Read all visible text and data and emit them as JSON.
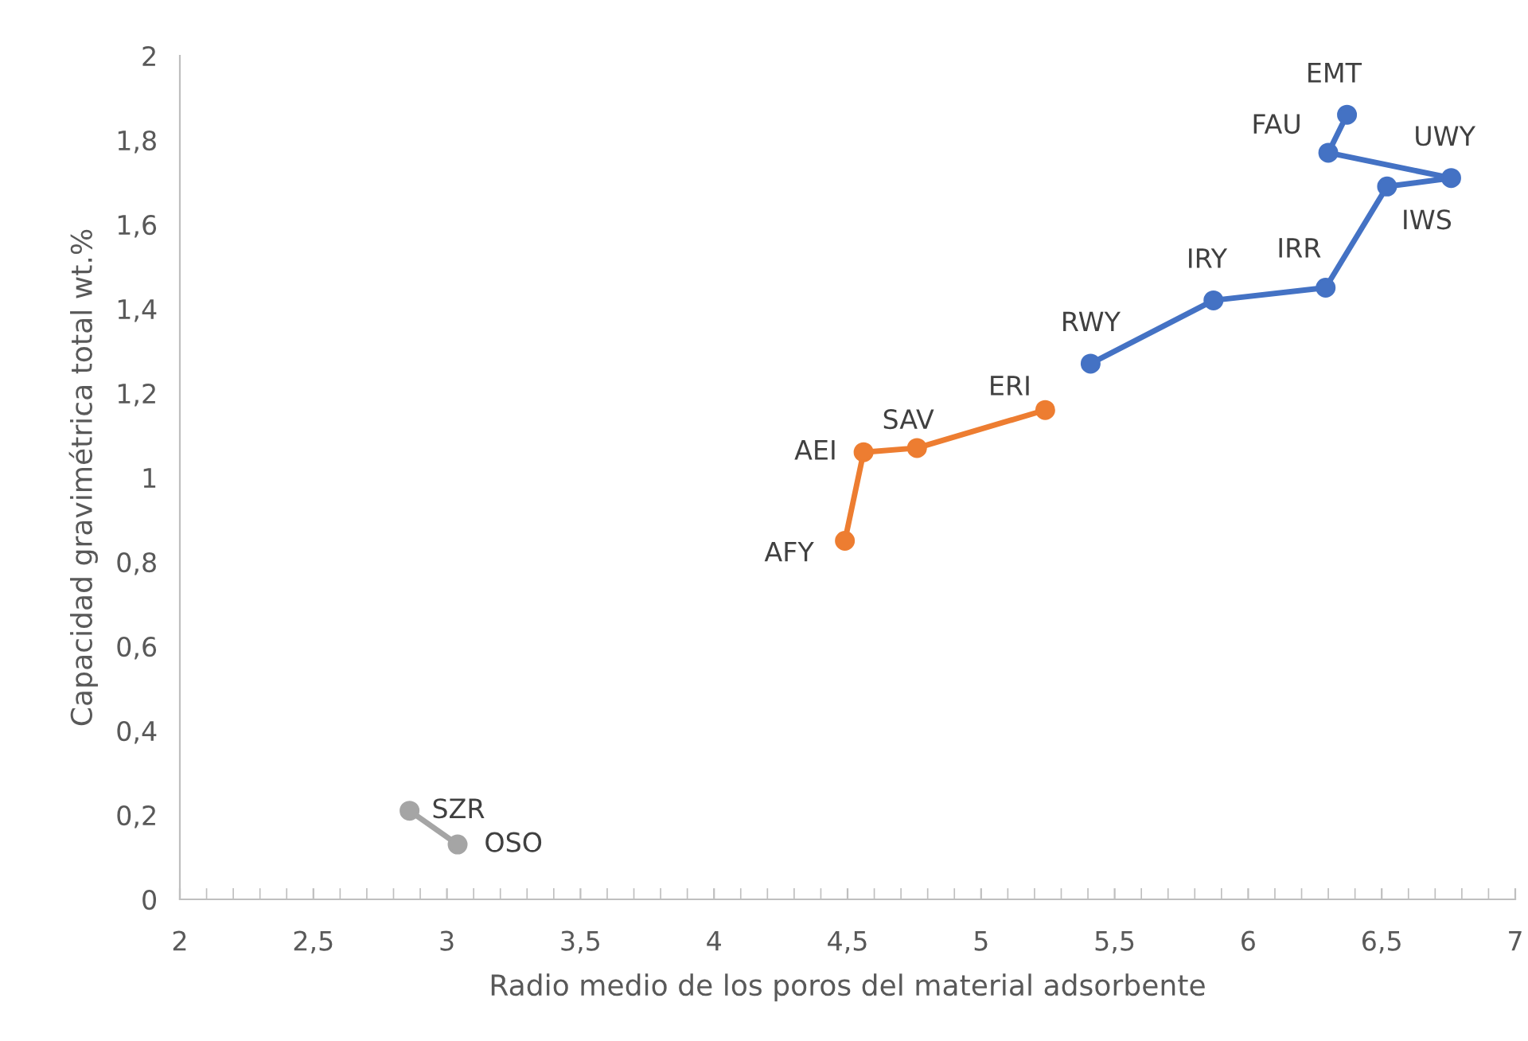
{
  "chart_data": {
    "type": "line",
    "xlabel": "Radio medio de los poros del material adsorbente",
    "ylabel": "Capacidad gravimétrica total wt.%",
    "series": [
      {
        "color": "#4472c4",
        "x": [
          5.41,
          5.87,
          6.29,
          6.52,
          6.76,
          6.3,
          6.37
        ],
        "values": [
          1.27,
          1.42,
          1.45,
          1.69,
          1.71,
          1.77,
          1.86
        ]
      },
      {
        "color": "#ed7d31",
        "x": [
          4.49,
          4.56,
          4.76,
          5.24
        ],
        "values": [
          0.85,
          1.06,
          1.07,
          1.16
        ]
      },
      {
        "color": "#a5a5a5",
        "x": [
          2.86,
          3.04
        ],
        "values": [
          0.21,
          0.13
        ]
      }
    ],
    "xlim": [
      2,
      7
    ],
    "xticks": [
      2,
      {
        "value": 2.5,
        "label": "2,5"
      },
      3,
      {
        "value": 3.5,
        "label": "3,5"
      },
      4,
      {
        "value": 4.5,
        "label": "4,5"
      },
      5,
      {
        "value": 5.5,
        "label": "5,5"
      },
      6,
      {
        "value": 6.5,
        "label": "6,5"
      },
      7
    ],
    "ylim": [
      0,
      2
    ],
    "yticks": [
      0,
      {
        "value": 0.2,
        "label": "0,2"
      },
      {
        "value": 0.4,
        "label": "0,4"
      },
      {
        "value": 0.6,
        "label": "0,6"
      },
      {
        "value": 0.8,
        "label": "0,8"
      },
      1,
      {
        "value": 1.2,
        "label": "1,2"
      },
      {
        "value": 1.4,
        "label": "1,4"
      },
      {
        "value": 1.6,
        "label": "1,6"
      },
      {
        "value": 1.8,
        "label": "1,8"
      },
      2
    ],
    "annotations": [
      {
        "text": "RWY",
        "x": 5.41,
        "y": 1.27
      },
      {
        "text": "IRY",
        "x": 5.87,
        "y": 1.42
      },
      {
        "text": "IRR",
        "x": 6.29,
        "y": 1.45
      },
      {
        "text": "IWS",
        "x": 6.52,
        "y": 1.69
      },
      {
        "text": "UWY",
        "x": 6.76,
        "y": 1.71
      },
      {
        "text": "FAU",
        "x": 6.3,
        "y": 1.77
      },
      {
        "text": "EMT",
        "x": 6.37,
        "y": 1.86
      },
      {
        "text": "AFY",
        "x": 4.49,
        "y": 0.85
      },
      {
        "text": "AEI",
        "x": 4.56,
        "y": 1.06
      },
      {
        "text": "SAV",
        "x": 4.76,
        "y": 1.07
      },
      {
        "text": "ERI",
        "x": 5.24,
        "y": 1.16
      },
      {
        "text": "SZR",
        "x": 2.86,
        "y": 0.21
      },
      {
        "text": "OSO",
        "x": 3.04,
        "y": 0.13
      }
    ],
    "grid": false,
    "marker": "circle",
    "line_style": "solid"
  }
}
